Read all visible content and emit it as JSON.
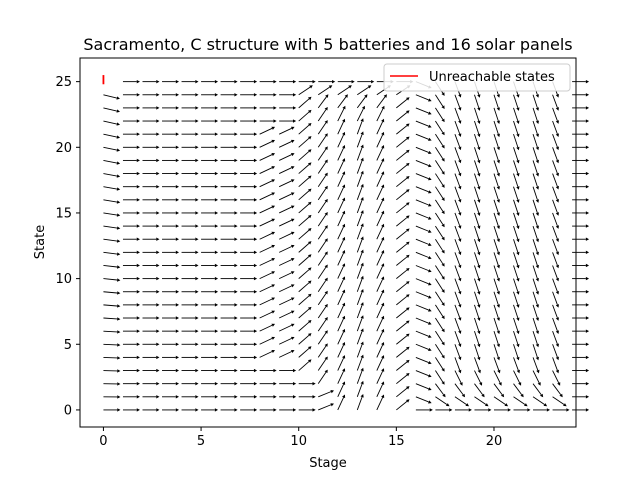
{
  "chart_data": {
    "type": "quiver",
    "title": "Sacramento, C structure with 5 batteries and 16 solar panels",
    "xlabel": "Stage",
    "ylabel": "State",
    "xlim": [
      -1.2,
      24.2
    ],
    "ylim": [
      -1.3,
      26.8
    ],
    "xticks": [
      0,
      5,
      10,
      15,
      20
    ],
    "yticks": [
      0,
      5,
      10,
      15,
      20,
      25
    ],
    "stages": [
      0,
      24
    ],
    "states": [
      0,
      25
    ],
    "legend": {
      "label": "Unreachable states",
      "color": "#ff0000",
      "position": "top-right"
    },
    "unreachable_segment": {
      "stage": 0,
      "state_from": 24.8,
      "state_to": 25.5
    },
    "arrow_color": "#000000",
    "field_description": "Each arrow at (stage, state) points to the next stage's state; arrows are drawn from a plausible policy field"
  }
}
